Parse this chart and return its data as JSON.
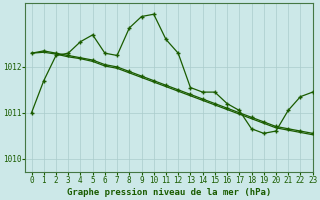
{
  "title": "Graphe pression niveau de la mer (hPa)",
  "background_color": "#cce8e8",
  "plot_bg_color": "#cce8e8",
  "line_color": "#1a5c00",
  "marker_color": "#1a5c00",
  "grid_color": "#aacccc",
  "xlim": [
    -0.5,
    23
  ],
  "ylim": [
    1009.7,
    1013.4
  ],
  "yticks": [
    1010,
    1011,
    1012
  ],
  "xticks": [
    0,
    1,
    2,
    3,
    4,
    5,
    6,
    7,
    8,
    9,
    10,
    11,
    12,
    13,
    14,
    15,
    16,
    17,
    18,
    19,
    20,
    21,
    22,
    23
  ],
  "series1_x": [
    0,
    1,
    2,
    3,
    4,
    5,
    6,
    7,
    8,
    9,
    10,
    11,
    12,
    13,
    14,
    15,
    16,
    17,
    18,
    19,
    20,
    21,
    22,
    23
  ],
  "series1_y": [
    1011.0,
    1011.7,
    1012.25,
    1012.3,
    1012.55,
    1012.7,
    1012.3,
    1012.25,
    1012.85,
    1013.1,
    1013.15,
    1012.6,
    1012.3,
    1011.55,
    1011.45,
    1011.45,
    1011.2,
    1011.05,
    1010.65,
    1010.55,
    1010.6,
    1011.05,
    1011.35,
    1011.45
  ],
  "series2_x": [
    0,
    1,
    2,
    3,
    4,
    5,
    6,
    7,
    8,
    9,
    10,
    11,
    12,
    13,
    14,
    15,
    16,
    17,
    18,
    19,
    20,
    21,
    22,
    23
  ],
  "series2_y": [
    1012.3,
    1012.35,
    1012.3,
    1012.25,
    1012.2,
    1012.15,
    1012.05,
    1012.0,
    1011.9,
    1011.8,
    1011.7,
    1011.6,
    1011.5,
    1011.4,
    1011.3,
    1011.2,
    1011.1,
    1011.0,
    1010.9,
    1010.8,
    1010.7,
    1010.65,
    1010.6,
    1010.55
  ],
  "series3_x": [
    0,
    1,
    2,
    3,
    4,
    5,
    6,
    7,
    8,
    9,
    10,
    11,
    12,
    13,
    14,
    15,
    16,
    17,
    18,
    19,
    20,
    21,
    22,
    23
  ],
  "series3_y": [
    1012.3,
    1012.32,
    1012.28,
    1012.22,
    1012.18,
    1012.12,
    1012.02,
    1011.97,
    1011.87,
    1011.77,
    1011.67,
    1011.57,
    1011.47,
    1011.37,
    1011.27,
    1011.17,
    1011.07,
    1010.97,
    1010.87,
    1010.77,
    1010.67,
    1010.62,
    1010.57,
    1010.52
  ],
  "tick_fontsize": 5.5,
  "title_fontsize": 6.5
}
